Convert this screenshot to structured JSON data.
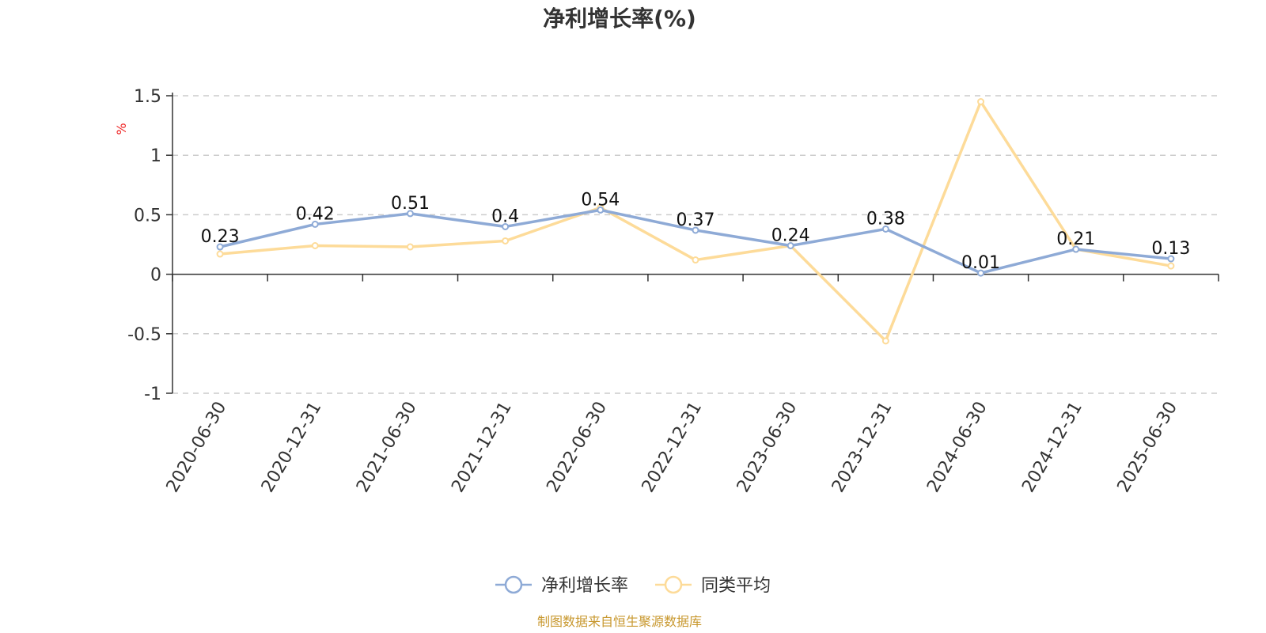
{
  "chart_data": {
    "type": "line",
    "title": "净利增长率(%)",
    "xlabel": "",
    "ylabel": "%",
    "categories": [
      "2020-06-30",
      "2020-12-31",
      "2021-06-30",
      "2021-12-31",
      "2022-06-30",
      "2022-12-31",
      "2023-06-30",
      "2023-12-31",
      "2024-06-30",
      "2024-12-31",
      "2025-06-30"
    ],
    "series": [
      {
        "name": "净利增长率",
        "values": [
          0.23,
          0.42,
          0.51,
          0.4,
          0.54,
          0.37,
          0.24,
          0.38,
          0.01,
          0.21,
          0.13
        ],
        "labels": [
          "0.23",
          "0.42",
          "0.51",
          "0.4",
          "0.54",
          "0.37",
          "0.24",
          "0.38",
          "0.01",
          "0.21",
          "0.13"
        ],
        "color": "#8eaad6"
      },
      {
        "name": "同类平均",
        "values": [
          0.17,
          0.24,
          0.23,
          0.28,
          0.56,
          0.12,
          0.24,
          -0.56,
          1.45,
          0.21,
          0.07
        ],
        "color": "#fddb99"
      }
    ],
    "ylim": [
      -1,
      1.5
    ],
    "yticks": [
      {
        "value": 1.5,
        "label": "1.5"
      },
      {
        "value": 1,
        "label": "1"
      },
      {
        "value": 0.5,
        "label": "0.5"
      },
      {
        "value": 0,
        "label": "0"
      },
      {
        "value": -0.5,
        "label": "-0.5"
      },
      {
        "value": -1,
        "label": "-1"
      }
    ],
    "grid": true,
    "legend_position": "bottom-center",
    "unit_color": "#ee2222"
  },
  "source": {
    "text": "制图数据来自恒生聚源数据库",
    "color": "#c8982f"
  }
}
